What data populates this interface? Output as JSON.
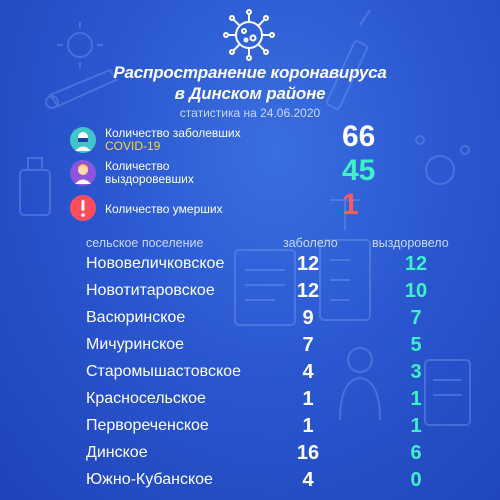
{
  "colors": {
    "background": "#2a57d0",
    "cases": "#ffffff",
    "recovered": "#3ff0c8",
    "deaths": "#ff5a5a",
    "highlight": "#ffd34d"
  },
  "header": {
    "icon": "coronavirus-icon",
    "title_line1": "Распространение коронавируса",
    "title_line2": "в Динском районе",
    "subtitle": "статистика на 24.06.2020"
  },
  "summary": {
    "cases": {
      "icon": "doctor-mask-icon",
      "label": "Количество заболевших",
      "sublabel": "COVID-19",
      "value": "66"
    },
    "recovered": {
      "icon": "person-icon",
      "label_line1": "Количество",
      "label_line2": "выздоровевших",
      "value": "45"
    },
    "deaths": {
      "icon": "exclamation-icon",
      "label": "Количество умерших",
      "value": "1"
    }
  },
  "table": {
    "headers": {
      "settlement": "сельское поселение",
      "sick": "заболело",
      "recovered": "выздоровело"
    },
    "rows": [
      {
        "name": "Нововеличковское",
        "sick": "12",
        "recovered": "12"
      },
      {
        "name": "Новотитаровское",
        "sick": "12",
        "recovered": "10"
      },
      {
        "name": "Васюринское",
        "sick": "9",
        "recovered": "7"
      },
      {
        "name": "Мичуринское",
        "sick": "7",
        "recovered": "5"
      },
      {
        "name": "Старомышастовское",
        "sick": "4",
        "recovered": "3"
      },
      {
        "name": "Красносельское",
        "sick": "1",
        "recovered": "1"
      },
      {
        "name": "Первореченское",
        "sick": "1",
        "recovered": "1"
      },
      {
        "name": "Динское",
        "sick": "16",
        "recovered": "6"
      },
      {
        "name": "Южно-Кубанское",
        "sick": "4",
        "recovered": "0"
      }
    ]
  }
}
